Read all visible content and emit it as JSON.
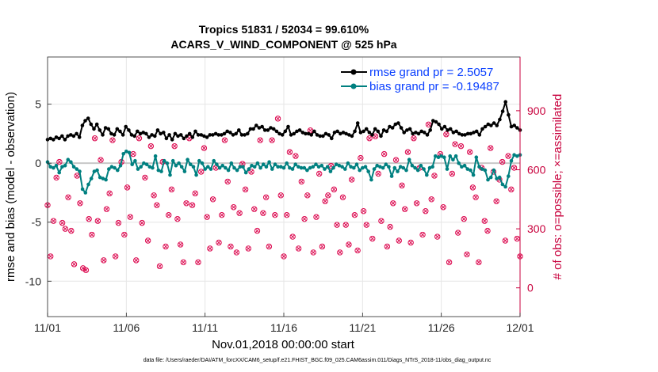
{
  "chart_data": {
    "type": "line",
    "title_line1": "Tropics 51831 / 52034 = 99.610%",
    "title_line2": "ACARS_V_WIND_COMPONENT @ 525 hPa",
    "xlabel": "Nov.01,2018 00:00:00 start",
    "ylabel_left": "rmse and bias (model - observation)",
    "ylabel_right": "# of obs: o=possible; ×=assimilated",
    "footnote": "data file: /Users/raeder/DAI/ATM_forcXX/CAM6_setup/f.e21.FHIST_BGC.f09_025.CAM6assim.011/Diags_NTrS_2018-11/obs_diag_output.nc",
    "x_ticks": [
      "11/01",
      "11/06",
      "11/11",
      "11/16",
      "11/21",
      "11/26",
      "12/01"
    ],
    "x_range_days": [
      0,
      30
    ],
    "ylim_left": [
      -13,
      9
    ],
    "yticks_left": [
      5,
      0,
      -5,
      -10
    ],
    "ylim_right": [
      -146,
      1173
    ],
    "yticks_right": [
      900,
      600,
      300,
      0
    ],
    "grid": true,
    "legend_position": "top-right",
    "colors": {
      "rmse": "#000000",
      "bias": "#008080",
      "obs": "#dc0a50",
      "zero": "#c8c8c8",
      "grid": "#e6e6e6"
    },
    "series": [
      {
        "name": "rmse grand pr = 2.5057",
        "axis": "left",
        "values": [
          2.0,
          2.1,
          2.0,
          2.2,
          2.1,
          2.3,
          2.0,
          2.3,
          2.4,
          2.3,
          2.5,
          2.2,
          3.2,
          3.6,
          3.8,
          3.3,
          2.9,
          3.3,
          2.8,
          2.4,
          3.0,
          2.9,
          2.5,
          2.4,
          2.9,
          2.7,
          2.4,
          3.1,
          2.8,
          2.4,
          2.3,
          2.7,
          2.5,
          2.6,
          2.5,
          2.2,
          2.4,
          2.3,
          2.8,
          2.5,
          2.6,
          2.1,
          2.4,
          2.0,
          2.5,
          2.3,
          2.4,
          2.1,
          2.3,
          2.5,
          2.2,
          2.7,
          2.4,
          2.4,
          2.3,
          2.2,
          2.4,
          2.4,
          2.5,
          2.4,
          2.4,
          2.5,
          2.7,
          2.6,
          2.4,
          2.5,
          2.8,
          2.4,
          2.4,
          2.5,
          2.9,
          2.9,
          3.2,
          3.0,
          3.1,
          2.8,
          2.8,
          3.0,
          2.9,
          2.7,
          2.5,
          2.4,
          2.7,
          3.1,
          2.4,
          2.5,
          2.7,
          2.8,
          2.6,
          2.5,
          2.5,
          2.4,
          2.7,
          2.4,
          2.3,
          2.3,
          2.5,
          2.4,
          2.1,
          2.6,
          2.7,
          2.5,
          2.6,
          2.5,
          2.4,
          2.3,
          2.7,
          3.4,
          2.6,
          2.7,
          2.9,
          2.6,
          2.4,
          2.9,
          2.7,
          2.3,
          2.8,
          2.7,
          3.1,
          3.0,
          3.3,
          3.4,
          3.0,
          2.6,
          2.8,
          2.9,
          2.5,
          2.6,
          2.5,
          2.7,
          2.6,
          2.4,
          2.8,
          3.6,
          3.5,
          3.3,
          2.9,
          3.1,
          2.8,
          2.9,
          2.6,
          2.7,
          2.5,
          2.4,
          2.4,
          2.5,
          2.5,
          2.6,
          2.7,
          2.4,
          2.9,
          3.1,
          3.3,
          3.2,
          3.4,
          3.2,
          3.7,
          4.4,
          5.2,
          4.1,
          3.1,
          3.2,
          3.0,
          2.8
        ]
      },
      {
        "name": "bias grand pr = -0.19487",
        "axis": "left",
        "values": [
          0.1,
          -0.3,
          -0.4,
          -0.2,
          -0.8,
          -0.3,
          -0.2,
          0.3,
          0.1,
          -0.3,
          -0.5,
          -0.7,
          -2.2,
          -2.5,
          -1.8,
          -1.3,
          -0.7,
          -0.6,
          -1.2,
          -1.3,
          -1.4,
          -0.5,
          -0.3,
          -0.4,
          -0.6,
          -0.2,
          0.8,
          1.0,
          0.9,
          -0.1,
          0.2,
          -0.5,
          -0.3,
          0.0,
          -0.1,
          -0.3,
          -0.4,
          0.6,
          -0.6,
          -0.7,
          0.2,
          0.0,
          -1.0,
          0.2,
          -0.2,
          0.0,
          -0.3,
          -0.7,
          0.3,
          -0.1,
          -0.3,
          -1.0,
          0.2,
          0.0,
          -0.5,
          -0.3,
          -0.5,
          0.2,
          -0.1,
          -0.4,
          -0.2,
          -0.4,
          -0.6,
          0.0,
          -0.4,
          -0.6,
          -0.3,
          -0.3,
          -0.8,
          -0.5,
          -0.2,
          -0.3,
          0.0,
          -0.4,
          -0.1,
          -0.3,
          0.1,
          -0.5,
          -0.1,
          -0.3,
          -0.3,
          -0.4,
          0.0,
          -0.4,
          -0.5,
          -0.1,
          -0.3,
          -0.4,
          -0.4,
          -0.6,
          -0.4,
          -0.3,
          -0.1,
          -0.3,
          -0.2,
          -0.5,
          -0.3,
          -0.7,
          -0.4,
          -0.1,
          -0.2,
          -0.3,
          -0.5,
          0.0,
          -0.3,
          -0.4,
          -0.1,
          -0.6,
          -0.4,
          -0.3,
          -0.7,
          -1.4,
          -0.5,
          -0.2,
          -0.3,
          -0.4,
          -0.1,
          -0.3,
          -1.1,
          -0.4,
          -0.7,
          -0.3,
          -0.4,
          -0.6,
          0.3,
          -0.2,
          -0.4,
          -0.6,
          -0.2,
          -0.5,
          -1.0,
          -0.4,
          -0.3,
          0.6,
          0.5,
          0.6,
          0.5,
          -0.5,
          0.6,
          0.3,
          0.6,
          0.0,
          -0.3,
          -0.2,
          -0.5,
          -0.6,
          -1.0,
          0.5,
          -0.3,
          -0.5,
          -0.6,
          -1.4,
          -1.2,
          -0.6,
          -1.3,
          -1.2,
          -1.8,
          -2.0,
          -1.1,
          0.2,
          0.7,
          0.6,
          0.7
        ]
      },
      {
        "name": "# of obs",
        "axis": "right",
        "values": [
          420,
          160,
          340,
          560,
          640,
          330,
          300,
          460,
          290,
          120,
          570,
          430,
          100,
          90,
          350,
          270,
          760,
          340,
          650,
          140,
          400,
          480,
          750,
          160,
          330,
          640,
          270,
          510,
          360,
          680,
          140,
          760,
          330,
          560,
          240,
          720,
          470,
          420,
          110,
          640,
          210,
          370,
          500,
          720,
          350,
          220,
          130,
          430,
          760,
          420,
          480,
          130,
          590,
          710,
          360,
          200,
          450,
          610,
          230,
          370,
          750,
          540,
          210,
          410,
          180,
          380,
          630,
          500,
          200,
          590,
          400,
          290,
          750,
          380,
          460,
          210,
          750,
          370,
          860,
          470,
          160,
          370,
          690,
          260,
          670,
          200,
          540,
          350,
          470,
          800,
          180,
          360,
          580,
          210,
          440,
          470,
          620,
          500,
          320,
          180,
          460,
          320,
          220,
          550,
          370,
          190,
          660,
          390,
          320,
          760,
          250,
          770,
          580,
          340,
          680,
          210,
          310,
          430,
          650,
          240,
          520,
          400,
          690,
          230,
          760,
          430,
          610,
          270,
          390,
          830,
          450,
          570,
          260,
          680,
          410,
          780,
          130,
          580,
          730,
          280,
          720,
          350,
          170,
          690,
          510,
          460,
          130,
          610,
          340,
          290,
          710,
          590,
          440,
          550,
          640,
          240,
          670,
          500,
          610,
          250,
          160
        ]
      }
    ]
  }
}
